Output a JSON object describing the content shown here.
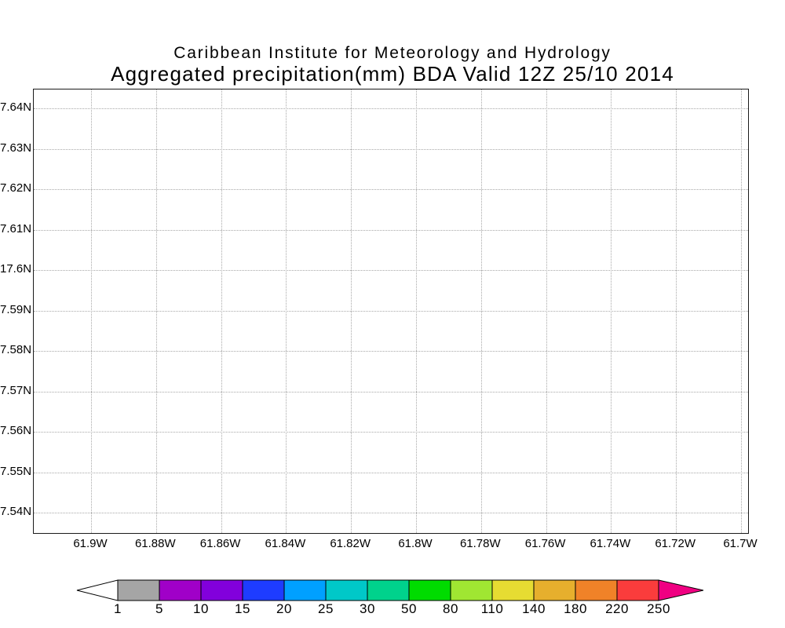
{
  "header": {
    "institute": "Caribbean Institute for Meteorology and Hydrology",
    "title": "Aggregated precipitation(mm) BDA Valid 12Z 25/10 2014"
  },
  "chart_data": {
    "type": "heatmap",
    "suptitle": "Caribbean Institute for Meteorology and Hydrology",
    "title": "Aggregated precipitation(mm) BDA Valid 12Z 25/10 2014",
    "xlabel": "",
    "ylabel": "",
    "grid": "dotted",
    "y_ticks": [
      "7.64N",
      "7.63N",
      "7.62N",
      "7.61N",
      "17.6N",
      "7.59N",
      "7.58N",
      "7.57N",
      "7.56N",
      "7.55N",
      "7.54N"
    ],
    "x_ticks": [
      "61.9W",
      "61.88W",
      "61.86W",
      "61.84W",
      "61.82W",
      "61.8W",
      "61.78W",
      "61.76W",
      "61.74W",
      "61.72W",
      "61.7W"
    ],
    "values": [],
    "note": "plot field is empty (no precipitation shading drawn)",
    "colorbar": {
      "levels": [
        "1",
        "5",
        "10",
        "15",
        "20",
        "25",
        "30",
        "50",
        "80",
        "110",
        "140",
        "180",
        "220",
        "250"
      ],
      "colors": [
        "#a5a5a5",
        "#a000c8",
        "#8200dc",
        "#1e3cff",
        "#00a0ff",
        "#00c8c8",
        "#00d28c",
        "#00dc00",
        "#a0e632",
        "#e6dc32",
        "#e6af2d",
        "#f08228",
        "#fa3c3c"
      ],
      "under_color": "#ffffff",
      "over_color": "#f00082",
      "outline_color": "#000000"
    }
  }
}
